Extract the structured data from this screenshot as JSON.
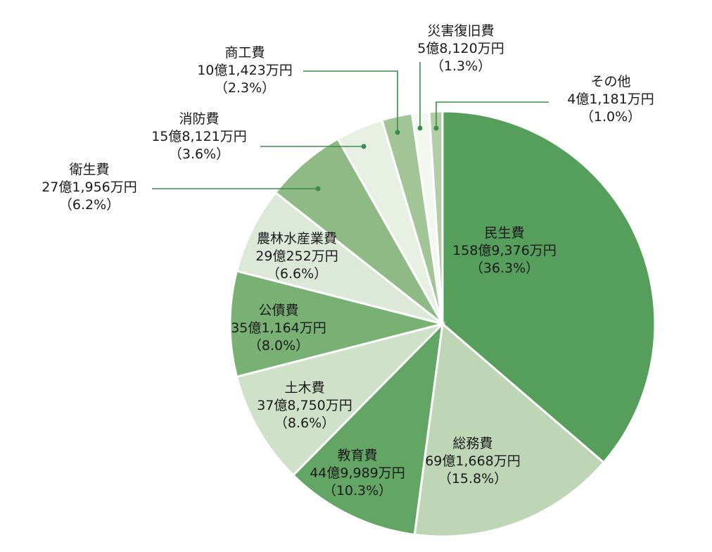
{
  "chart_data": {
    "type": "pie",
    "title": "",
    "unit": "万円",
    "slices": [
      {
        "name": "民生費",
        "amount": "158億9,376万円",
        "percent_label": "（36.3%）",
        "value": 36.3,
        "color": "#559e5c"
      },
      {
        "name": "総務費",
        "amount": "69億1,668万円",
        "percent_label": "（15.8%）",
        "value": 15.8,
        "color": "#bed6b6"
      },
      {
        "name": "教育費",
        "amount": "44億9,989万円",
        "percent_label": "（10.3%）",
        "value": 10.3,
        "color": "#63a565"
      },
      {
        "name": "土木費",
        "amount": "37億8,750万円",
        "percent_label": "（8.6%）",
        "value": 8.6,
        "color": "#cfe1c9"
      },
      {
        "name": "公債費",
        "amount": "35億1,164万円",
        "percent_label": "（8.0%）",
        "value": 8.0,
        "color": "#78b173"
      },
      {
        "name": "農林水産業費",
        "amount": "29億252万円",
        "percent_label": "（6.6%）",
        "value": 6.6,
        "color": "#dde9d8"
      },
      {
        "name": "衛生費",
        "amount": "27億1,956万円",
        "percent_label": "（6.2%）",
        "value": 6.2,
        "color": "#8fba85"
      },
      {
        "name": "消防費",
        "amount": "15億8,121万円",
        "percent_label": "（3.6%）",
        "value": 3.6,
        "color": "#e8f0e4"
      },
      {
        "name": "商工費",
        "amount": "10億1,423万円",
        "percent_label": "（2.3%）",
        "value": 2.3,
        "color": "#a1c596"
      },
      {
        "name": "災害復旧費",
        "amount": "5億8,120万円",
        "percent_label": "（1.3%）",
        "value": 1.3,
        "color": "#f2f7ef"
      },
      {
        "name": "その他",
        "amount": "4億1,181万円",
        "percent_label": "（1.0%）",
        "value": 1.0,
        "color": "#b2cea6"
      }
    ]
  }
}
